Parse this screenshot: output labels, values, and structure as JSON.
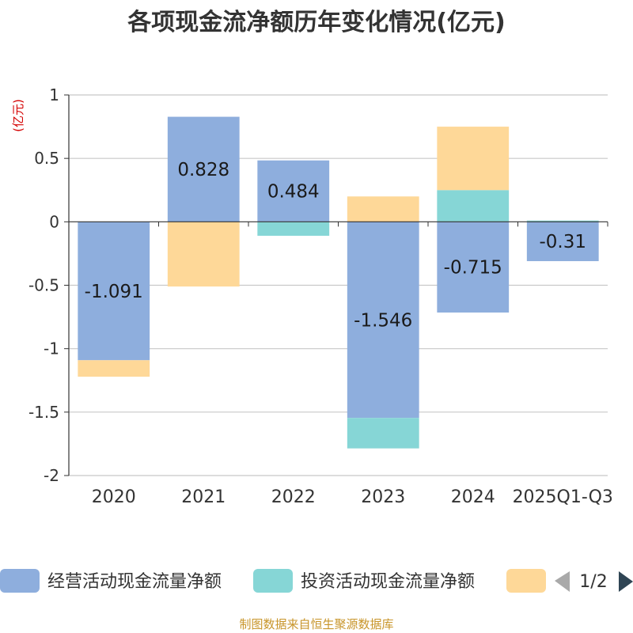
{
  "chart_data": {
    "type": "bar",
    "stacked": true,
    "title": "各项现金流净额历年变化情况(亿元)",
    "ylabel": "(亿元)",
    "xlabel": "",
    "ylim": [
      -2,
      1
    ],
    "yticks": [
      1,
      0.5,
      0,
      -0.5,
      -1,
      -1.5,
      -2
    ],
    "ytick_labels": [
      "1",
      "0.5",
      "0",
      "-0.5",
      "-1",
      "-1.5",
      "-2"
    ],
    "categories": [
      "2020",
      "2021",
      "2022",
      "2023",
      "2024",
      "2025Q1-Q3"
    ],
    "grid": true,
    "series": [
      {
        "name": "经营活动现金流量净额",
        "color": "#8eaedd",
        "values": [
          -1.091,
          0.828,
          0.484,
          -1.546,
          -0.715,
          -0.31
        ],
        "labels": [
          "-1.091",
          "0.828",
          "0.484",
          "-1.546",
          "-0.715",
          "-0.31"
        ]
      },
      {
        "name": "投资活动现金流量净额",
        "color": "#86d6d6",
        "values": [
          0,
          0,
          -0.11,
          -0.24,
          0.25,
          0.01
        ]
      },
      {
        "name": "",
        "color": "#fed898",
        "values": [
          -0.13,
          -0.51,
          0,
          0.2,
          0.5,
          0
        ]
      }
    ],
    "legend": {
      "position": "bottom",
      "page": "1/2"
    }
  },
  "source": "制图数据来自恒生聚源数据库"
}
